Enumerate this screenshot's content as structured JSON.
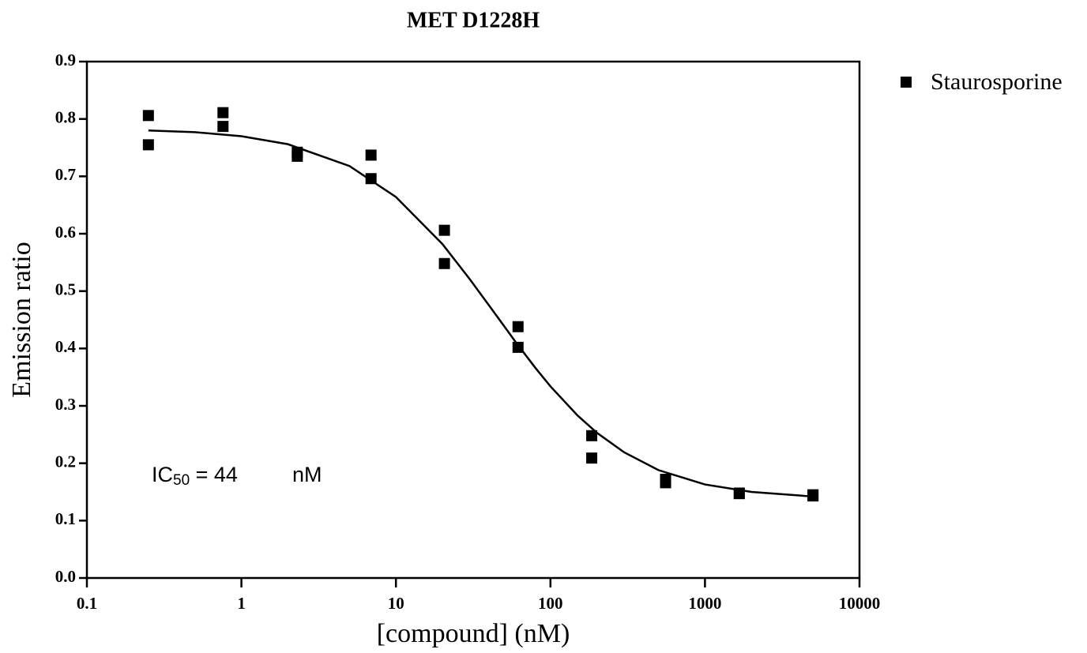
{
  "chart_data": {
    "type": "scatter",
    "title": "MET D1228H",
    "x_label": "[compound] (nM)",
    "y_label": "Emission ratio",
    "xscale": "log",
    "xlim": [
      0.1,
      10000
    ],
    "xticks": [
      0.1,
      1,
      10,
      100,
      1000,
      10000
    ],
    "ylim": [
      0,
      0.9
    ],
    "yticks": [
      {
        "value": 0,
        "label": "0.0"
      },
      0.1,
      0.2,
      0.3,
      0.4,
      0.5,
      0.6,
      0.7,
      0.8,
      0.9
    ],
    "legend": "outside-top-right",
    "annotation": {
      "prefix": "IC",
      "subscript": "50",
      "text": " = 44",
      "unit": "nM"
    },
    "series": [
      {
        "name": "Staurosporine",
        "color": "#000000",
        "marker": "square",
        "x": [
          0.25,
          0.25,
          0.76,
          0.76,
          2.3,
          2.3,
          6.9,
          6.9,
          20.6,
          20.6,
          61.7,
          61.7,
          185,
          185,
          556,
          556,
          1667,
          1667,
          5000,
          5000
        ],
        "values": [
          0.806,
          0.755,
          0.811,
          0.787,
          0.742,
          0.735,
          0.737,
          0.696,
          0.606,
          0.548,
          0.438,
          0.402,
          0.248,
          0.209,
          0.172,
          0.166,
          0.148,
          0.147,
          0.145,
          0.143
        ]
      },
      {
        "color": "#000000",
        "mode": "line",
        "x": [
          0.25,
          0.5,
          1,
          2,
          5,
          10,
          20,
          30,
          44,
          60,
          80,
          100,
          150,
          200,
          300,
          500,
          1000,
          2000,
          5000
        ],
        "values": [
          0.78,
          0.777,
          0.77,
          0.756,
          0.718,
          0.664,
          0.582,
          0.521,
          0.46,
          0.41,
          0.366,
          0.334,
          0.283,
          0.253,
          0.219,
          0.188,
          0.163,
          0.15,
          0.142
        ]
      }
    ]
  }
}
